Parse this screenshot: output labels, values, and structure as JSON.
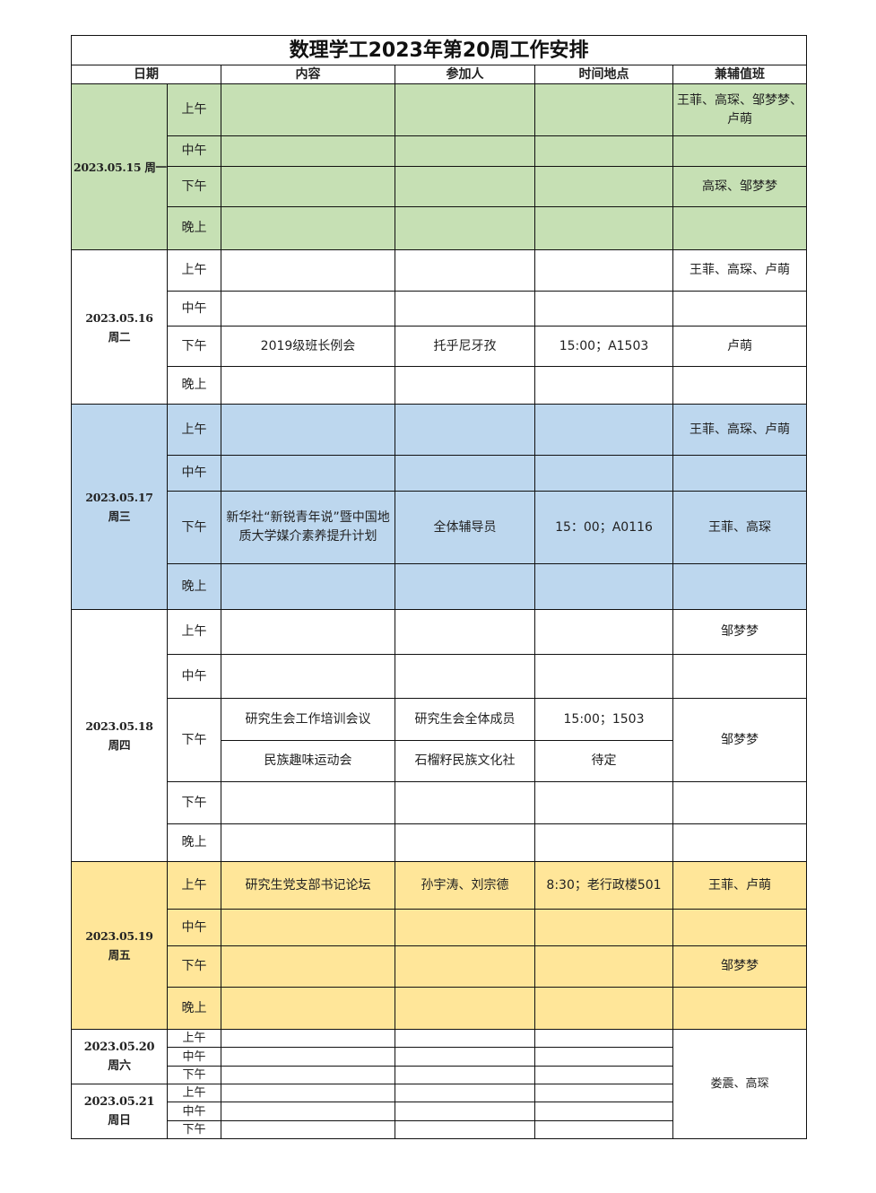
{
  "title": "数理学工2023年第20周工作安排",
  "headers": {
    "date": "日期",
    "content": "内容",
    "participants": "参加人",
    "time_place": "时间地点",
    "duty": "兼辅值班"
  },
  "colors": {
    "green": "#c6e0b4",
    "blue": "#bdd7ee",
    "yellow": "#ffe699",
    "white": "#ffffff"
  },
  "days": [
    {
      "date": "2023.05.15",
      "weekday": "周一",
      "color": "#c6e0b4",
      "rows": [
        {
          "slot": "上午",
          "items": [
            {
              "content": "",
              "participants": "",
              "time_place": ""
            }
          ],
          "duty": "王菲、高琛、邹梦梦、卢萌"
        },
        {
          "slot": "中午",
          "items": [
            {
              "content": "",
              "participants": "",
              "time_place": ""
            }
          ],
          "duty": ""
        },
        {
          "slot": "下午",
          "items": [
            {
              "content": "",
              "participants": "",
              "time_place": ""
            }
          ],
          "duty": "高琛、邹梦梦"
        },
        {
          "slot": "晚上",
          "items": [
            {
              "content": "",
              "participants": "",
              "time_place": ""
            }
          ],
          "duty": ""
        }
      ]
    },
    {
      "date": "2023.05.16",
      "weekday": "周二",
      "color": "#ffffff",
      "rows": [
        {
          "slot": "上午",
          "items": [
            {
              "content": "",
              "participants": "",
              "time_place": ""
            }
          ],
          "duty": "王菲、高琛、卢萌"
        },
        {
          "slot": "中午",
          "items": [
            {
              "content": "",
              "participants": "",
              "time_place": ""
            }
          ],
          "duty": ""
        },
        {
          "slot": "下午",
          "items": [
            {
              "content": "2019级班长例会",
              "participants": "托乎尼牙孜",
              "time_place": "15:00；A1503"
            }
          ],
          "duty": "卢萌"
        },
        {
          "slot": "晚上",
          "items": [
            {
              "content": "",
              "participants": "",
              "time_place": ""
            }
          ],
          "duty": ""
        }
      ]
    },
    {
      "date": "2023.05.17",
      "weekday": "周三",
      "color": "#bdd7ee",
      "rows": [
        {
          "slot": "上午",
          "items": [
            {
              "content": "",
              "participants": "",
              "time_place": ""
            }
          ],
          "duty": "王菲、高琛、卢萌"
        },
        {
          "slot": "中午",
          "items": [
            {
              "content": "",
              "participants": "",
              "time_place": ""
            }
          ],
          "duty": ""
        },
        {
          "slot": "下午",
          "items": [
            {
              "content": "新华社“新锐青年说”暨中国地质大学媒介素养提升计划",
              "participants": "全体辅导员",
              "time_place": "15：00；A0116"
            }
          ],
          "duty": "王菲、高琛"
        },
        {
          "slot": "晚上",
          "items": [
            {
              "content": "",
              "participants": "",
              "time_place": ""
            }
          ],
          "duty": ""
        }
      ]
    },
    {
      "date": "2023.05.18",
      "weekday": "周四",
      "color": "#ffffff",
      "rows": [
        {
          "slot": "上午",
          "items": [
            {
              "content": "",
              "participants": "",
              "time_place": ""
            }
          ],
          "duty": "邹梦梦"
        },
        {
          "slot": "中午",
          "items": [
            {
              "content": "",
              "participants": "",
              "time_place": ""
            }
          ],
          "duty": ""
        },
        {
          "slot": "下午",
          "items": [
            {
              "content": "研究生会工作培训会议",
              "participants": "研究生会全体成员",
              "time_place": "15:00；1503"
            },
            {
              "content": "民族趣味运动会",
              "participants": "石榴籽民族文化社",
              "time_place": "待定"
            }
          ],
          "duty": "邹梦梦"
        },
        {
          "slot": "下午",
          "items": [
            {
              "content": "",
              "participants": "",
              "time_place": ""
            }
          ],
          "duty": ""
        },
        {
          "slot": "晚上",
          "items": [
            {
              "content": "",
              "participants": "",
              "time_place": ""
            }
          ],
          "duty": ""
        }
      ]
    },
    {
      "date": "2023.05.19",
      "weekday": "周五",
      "color": "#ffe699",
      "rows": [
        {
          "slot": "上午",
          "items": [
            {
              "content": "研究生党支部书记论坛",
              "participants": "孙宇涛、刘宗德",
              "time_place": "8:30；老行政楼501"
            }
          ],
          "duty": "王菲、卢萌"
        },
        {
          "slot": "中午",
          "items": [
            {
              "content": "",
              "participants": "",
              "time_place": ""
            }
          ],
          "duty": ""
        },
        {
          "slot": "下午",
          "items": [
            {
              "content": "",
              "participants": "",
              "time_place": ""
            }
          ],
          "duty": "邹梦梦"
        },
        {
          "slot": "晚上",
          "items": [
            {
              "content": "",
              "participants": "",
              "time_place": ""
            }
          ],
          "duty": ""
        }
      ]
    },
    {
      "date": "2023.05.20",
      "weekday": "周六",
      "color": "#ffffff",
      "rows": [
        {
          "slot": "上午",
          "items": [
            {
              "content": "",
              "participants": "",
              "time_place": ""
            }
          ]
        },
        {
          "slot": "中午",
          "items": [
            {
              "content": "",
              "participants": "",
              "time_place": ""
            }
          ]
        },
        {
          "slot": "下午",
          "items": [
            {
              "content": "",
              "participants": "",
              "time_place": ""
            }
          ]
        }
      ]
    },
    {
      "date": "2023.05.21",
      "weekday": "周日",
      "color": "#ffffff",
      "rows": [
        {
          "slot": "上午",
          "items": [
            {
              "content": "",
              "participants": "",
              "time_place": ""
            }
          ]
        },
        {
          "slot": "中午",
          "items": [
            {
              "content": "",
              "participants": "",
              "time_place": ""
            }
          ]
        },
        {
          "slot": "下午",
          "items": [
            {
              "content": "",
              "participants": "",
              "time_place": ""
            }
          ]
        }
      ]
    }
  ],
  "weekend_duty": "娄震、高琛"
}
